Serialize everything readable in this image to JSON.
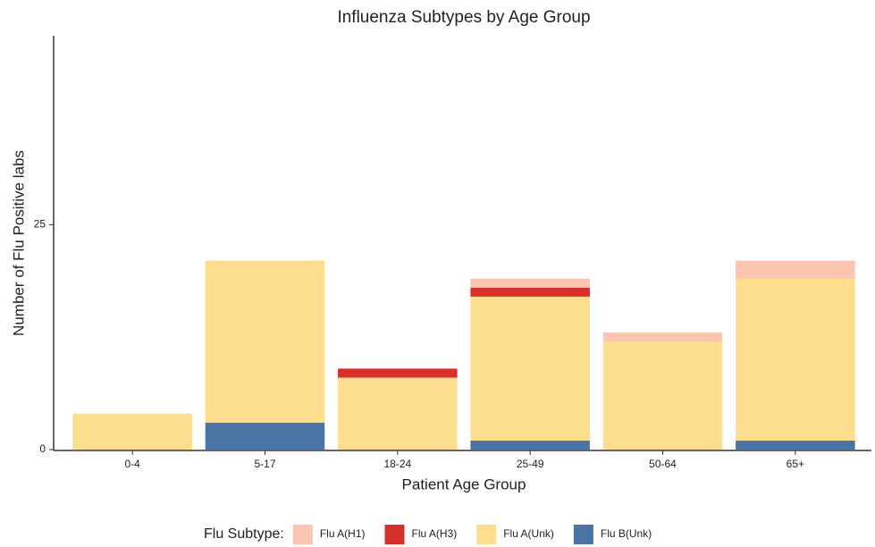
{
  "chart_data": {
    "type": "stacked-bar",
    "title": "Influenza Subtypes by Age Group",
    "x_label": "Patient Age Group",
    "y_label": "Number of Flu Positive labs",
    "legend_title": "Flu Subtype:",
    "categories": [
      "0-4",
      "5-17",
      "18-24",
      "25-49",
      "50-64",
      "65+"
    ],
    "series": [
      {
        "name": "Flu A(H1)",
        "color": "#fcc5b0",
        "values": [
          0,
          0,
          0,
          1,
          1,
          2
        ]
      },
      {
        "name": "Flu A(H3)",
        "color": "#d7302a",
        "values": [
          0,
          0,
          1,
          1,
          0,
          0
        ]
      },
      {
        "name": "Flu A(Unk)",
        "color": "#fddd8e",
        "values": [
          4,
          18,
          8,
          16,
          12,
          18
        ]
      },
      {
        "name": "Flu B(Unk)",
        "color": "#4a74a4",
        "values": [
          0,
          3,
          0,
          1,
          0,
          1
        ]
      }
    ],
    "ylim": [
      0,
      46
    ],
    "yticks": [
      0,
      25
    ],
    "legend": "bottom"
  }
}
